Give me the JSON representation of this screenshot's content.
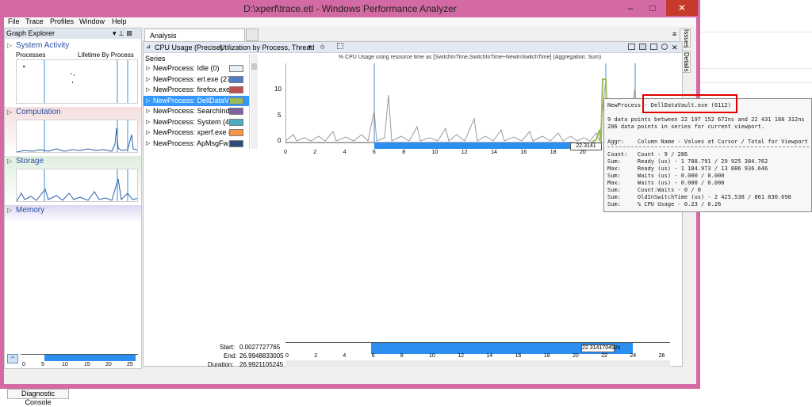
{
  "window": {
    "title": "D:\\xperf\\trace.etl - Windows Performance Analyzer",
    "minimize": "–",
    "maximize": "□",
    "close": "✕"
  },
  "menu": [
    "File",
    "Trace",
    "Profiles",
    "Window",
    "Help"
  ],
  "graph_explorer": {
    "title": "Graph Explorer",
    "pin": "▾ ⊥ ⊠",
    "sections": [
      {
        "label": "System Activity",
        "sub_left": "Processes",
        "sub_right": "Lifetime By Process"
      },
      {
        "label": "Computation"
      },
      {
        "label": "Storage"
      },
      {
        "label": "Memory"
      }
    ],
    "ticks": [
      "0",
      "5",
      "10",
      "15",
      "20",
      "25"
    ]
  },
  "analysis_tab": {
    "label": "Analysis"
  },
  "graph": {
    "title": "CPU Usage (Precise)",
    "preset": "Utilization by Process, Thread",
    "chart_title": "% CPU Usage using resource time as [SwitchInTime,SwitchInTime+NewInSwitchTime] (Aggregation: Sum)",
    "series_header": "Series",
    "series": [
      {
        "label": "NewProcess: Idle (0)",
        "color": "#e8eef7",
        "selected": false
      },
      {
        "label": "NewProcess: erl.exe (27...",
        "color": "#4f7fc1",
        "selected": false
      },
      {
        "label": "NewProcess: firefox.exe...",
        "color": "#c0504d",
        "selected": false
      },
      {
        "label": "NewProcess: DellDataV...",
        "color": "#9bbb59",
        "selected": true
      },
      {
        "label": "NewProcess: SearchInd...",
        "color": "#8064a2",
        "selected": false
      },
      {
        "label": "NewProcess: System (4)",
        "color": "#4bacc6",
        "selected": false
      },
      {
        "label": "NewProcess: xperf.exe (...",
        "color": "#f79646",
        "selected": false
      },
      {
        "label": "NewProcess: ApMsgFw...",
        "color": "#2c4d75",
        "selected": false
      }
    ],
    "y_ticks": [
      "10",
      "5",
      "0"
    ],
    "x_ticks": [
      "0",
      "2",
      "4",
      "6",
      "8",
      "10",
      "12",
      "14",
      "16",
      "18",
      "20",
      "22",
      "24",
      "26"
    ],
    "cursor_label": "22.3141"
  },
  "side_tabs": [
    "Issues",
    "Details"
  ],
  "tooltip": {
    "header": "NewProcess - DellDataVault.exe (6112)",
    "line1": "9 data points between 22 197 152 672ns and 22 431 188 312ns",
    "line2": "286 data points in series for current viewport.",
    "aggr_header": "Aggr:    Column Name - Values at Cursor / Total for Viewport",
    "rows": [
      "Count:   Count - 9 / 286",
      "Sum:     Ready (us) - 1 788.791 / 29 925 384.762",
      "Max:     Ready (us) - 1 184.973 / 13 886 936.646",
      "Sum:     Waits (us) - 0.000 / 0.000",
      "Max:     Waits (us) - 0.000 / 0.000",
      "Sum:     Count:Waits - 0 / 0",
      "Sum:     OldInSwitchTime (us) - 2 425.538 / 861 830.698",
      "Sum:     % CPU Usage - 0.23 / 0.26"
    ]
  },
  "timeline": {
    "start_label": "Start:",
    "start_value": "0.0027727765",
    "end_label": "End:",
    "end_value": "26.9948833005",
    "duration_label": "Duration:",
    "duration_value": "26.9921105245",
    "x_ticks": [
      "0",
      "2",
      "4",
      "6",
      "8",
      "10",
      "12",
      "14",
      "16",
      "18",
      "20",
      "22",
      "24",
      "26"
    ],
    "cursor_label": "22.314170492s"
  },
  "diagnostic_console": "Diagnostic Console"
}
